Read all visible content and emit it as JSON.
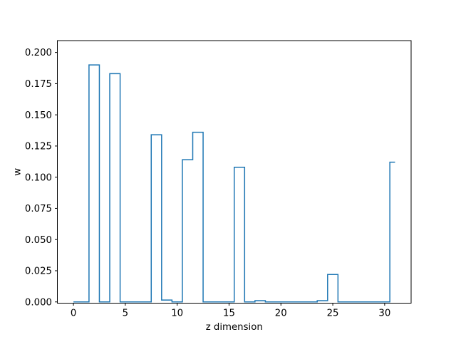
{
  "figure": {
    "background": "#ffffff",
    "axes_background": "#ffffff",
    "spine_color": "#000000",
    "text_color": "#000000"
  },
  "chart_data": {
    "type": "line",
    "subtype": "step",
    "step_where": "mid",
    "title": "",
    "xlabel": "z dimension",
    "ylabel": "w",
    "line_color": "#1f77b4",
    "grid": false,
    "legend": null,
    "x": [
      0,
      1,
      2,
      3,
      4,
      5,
      6,
      7,
      8,
      9,
      10,
      11,
      12,
      13,
      14,
      15,
      16,
      17,
      18,
      19,
      20,
      21,
      22,
      23,
      24,
      25,
      26,
      27,
      28,
      29,
      30,
      31
    ],
    "y": [
      0.0,
      0.0,
      0.19,
      0.0,
      0.183,
      0.0,
      0.0,
      0.0,
      0.134,
      0.0015,
      0.0,
      0.114,
      0.136,
      0.0,
      0.0,
      0.0,
      0.108,
      0.0,
      0.001,
      0.0,
      0.0,
      0.0,
      0.0,
      0.0,
      0.001,
      0.022,
      0.0,
      0.0,
      0.0,
      0.0,
      0.0,
      0.112
    ],
    "xlim": [
      -1.55,
      32.55
    ],
    "ylim": [
      -0.001,
      0.2095
    ],
    "xticks": [
      {
        "v": 0,
        "label": "0"
      },
      {
        "v": 5,
        "label": "5"
      },
      {
        "v": 10,
        "label": "10"
      },
      {
        "v": 15,
        "label": "15"
      },
      {
        "v": 20,
        "label": "20"
      },
      {
        "v": 25,
        "label": "25"
      },
      {
        "v": 30,
        "label": "30"
      }
    ],
    "yticks": [
      {
        "v": 0.0,
        "label": "0.000"
      },
      {
        "v": 0.025,
        "label": "0.025"
      },
      {
        "v": 0.05,
        "label": "0.050"
      },
      {
        "v": 0.075,
        "label": "0.075"
      },
      {
        "v": 0.1,
        "label": "0.100"
      },
      {
        "v": 0.125,
        "label": "0.125"
      },
      {
        "v": 0.15,
        "label": "0.150"
      },
      {
        "v": 0.175,
        "label": "0.175"
      },
      {
        "v": 0.2,
        "label": "0.200"
      }
    ]
  }
}
